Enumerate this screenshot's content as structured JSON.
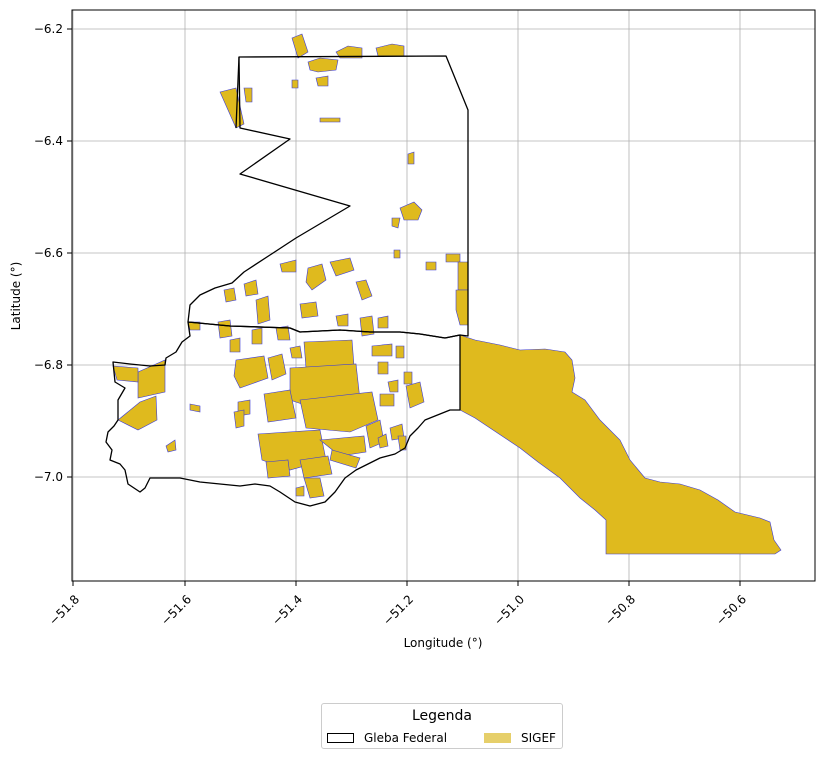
{
  "chart_data": {
    "type": "map",
    "title": "",
    "xlabel": "Longitude (°)",
    "ylabel": "Latitude (°)",
    "xlim": [
      -51.82,
      -50.46
    ],
    "ylim": [
      -7.19,
      -6.17
    ],
    "xticks": [
      "−51.8",
      "−51.6",
      "−51.4",
      "−51.2",
      "−51.0",
      "−50.8",
      "−50.6"
    ],
    "yticks": [
      "−6.2",
      "−6.4",
      "−6.6",
      "−6.8",
      "−7.0"
    ],
    "grid": true,
    "legend": {
      "title": "Legenda",
      "placement": "bottom-center, below plot",
      "entries": [
        {
          "label": "Gleba Federal",
          "style": "outline",
          "color": "#000000"
        },
        {
          "label": "SIGEF",
          "style": "fill",
          "color": "#dfba1e"
        }
      ]
    },
    "layers": {
      "gleba_federal_outline": "#000000",
      "sigef_fill": "#dfba1e",
      "sigef_edge": "#3b3bd8"
    }
  }
}
